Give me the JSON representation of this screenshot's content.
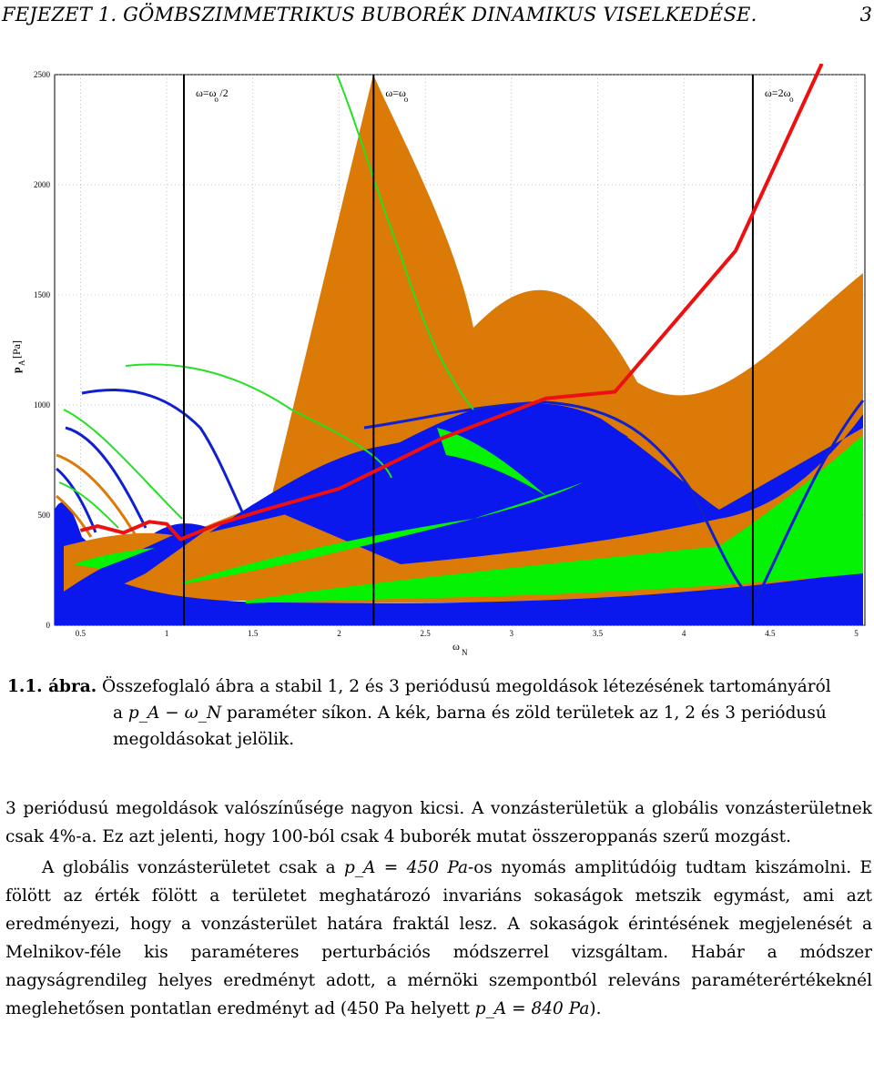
{
  "header": {
    "title": "FEJEZET 1.  GÖMBSZIMMETRIKUS BUBORÉK DINAMIKUS VISELKEDÉSE.",
    "page_number": "3"
  },
  "chart_data": {
    "type": "area",
    "title": "",
    "xlabel": "ω_N",
    "ylabel": "p_A [Pa]",
    "xlim": [
      0.35,
      5.05
    ],
    "ylim": [
      0,
      2500
    ],
    "grid": true,
    "x_ticks": [
      "0.5",
      "1",
      "1.5",
      "2",
      "2.5",
      "3",
      "3.5",
      "4",
      "4.5",
      "5"
    ],
    "y_ticks": [
      "0",
      "500",
      "1000",
      "1500",
      "2000",
      "2500"
    ],
    "regions": [
      {
        "name": "1 periódusú",
        "color": "#0a18ee"
      },
      {
        "name": "2 periódusú",
        "color": "#db7a06"
      },
      {
        "name": "3 periódusú",
        "color": "#05f205"
      }
    ],
    "boundary_line": {
      "color": "#ee1010",
      "points": [
        [
          0.5,
          430
        ],
        [
          0.6,
          450
        ],
        [
          0.75,
          420
        ],
        [
          0.9,
          470
        ],
        [
          1.0,
          460
        ],
        [
          1.08,
          390
        ],
        [
          1.3,
          460
        ],
        [
          1.55,
          520
        ],
        [
          2.0,
          620
        ],
        [
          2.6,
          850
        ],
        [
          3.2,
          1030
        ],
        [
          3.6,
          1060
        ],
        [
          4.3,
          1700
        ],
        [
          4.8,
          2550
        ]
      ]
    },
    "vertical_lines": [
      {
        "label": "ω=ω",
        "subscript": "o",
        "suffix": " /2",
        "x": 1.1
      },
      {
        "label": "ω=ω",
        "subscript": "o",
        "suffix": "",
        "x": 2.2
      },
      {
        "label": "ω=2ω",
        "subscript": "o",
        "suffix": "",
        "x": 4.4
      }
    ]
  },
  "caption": {
    "label": "1.1. ábra.",
    "line1": " Összefoglaló ábra a stabil 1, 2 és 3 periódusú megoldások létezésének tartományáról",
    "line2_pre": "a ",
    "line2_math": "p_A − ω_N",
    "line2_post": " paraméter síkon. A kék, barna és zöld területek az 1, 2 és 3 periódusú",
    "line3": "megoldásokat jelölik."
  },
  "body": {
    "p1": "3 periódusú megoldások valószínűsége nagyon kicsi. A vonzásterületük a globális vonzásterületnek csak 4%-a. Ez azt jelenti, hogy 100-ból csak 4 buborék mutat összeroppanás szerű mozgást.",
    "p2_a": "A globális vonzásterületet csak a ",
    "p2_b": "p_A = 450 Pa",
    "p2_c": "-os nyomás amplitúdóig tudtam kiszámolni. E fölött az érték fölött a területet meghatározó invariáns sokaságok metszik egymást, ami azt eredményezi, hogy a vonzásterület határa fraktál lesz. A sokaságok érintésének megjelenését a Melnikov-féle kis paraméteres perturbációs módszerrel vizsgáltam. Habár a módszer nagyságrendileg helyes eredményt adott, a mérnöki szempontból releváns paraméterértékeknél meglehetősen pontatlan eredményt ad (",
    "p2_d": "450 Pa",
    "p2_e": " helyett ",
    "p2_f": "p_A = 840 Pa",
    "p2_g": ")."
  }
}
